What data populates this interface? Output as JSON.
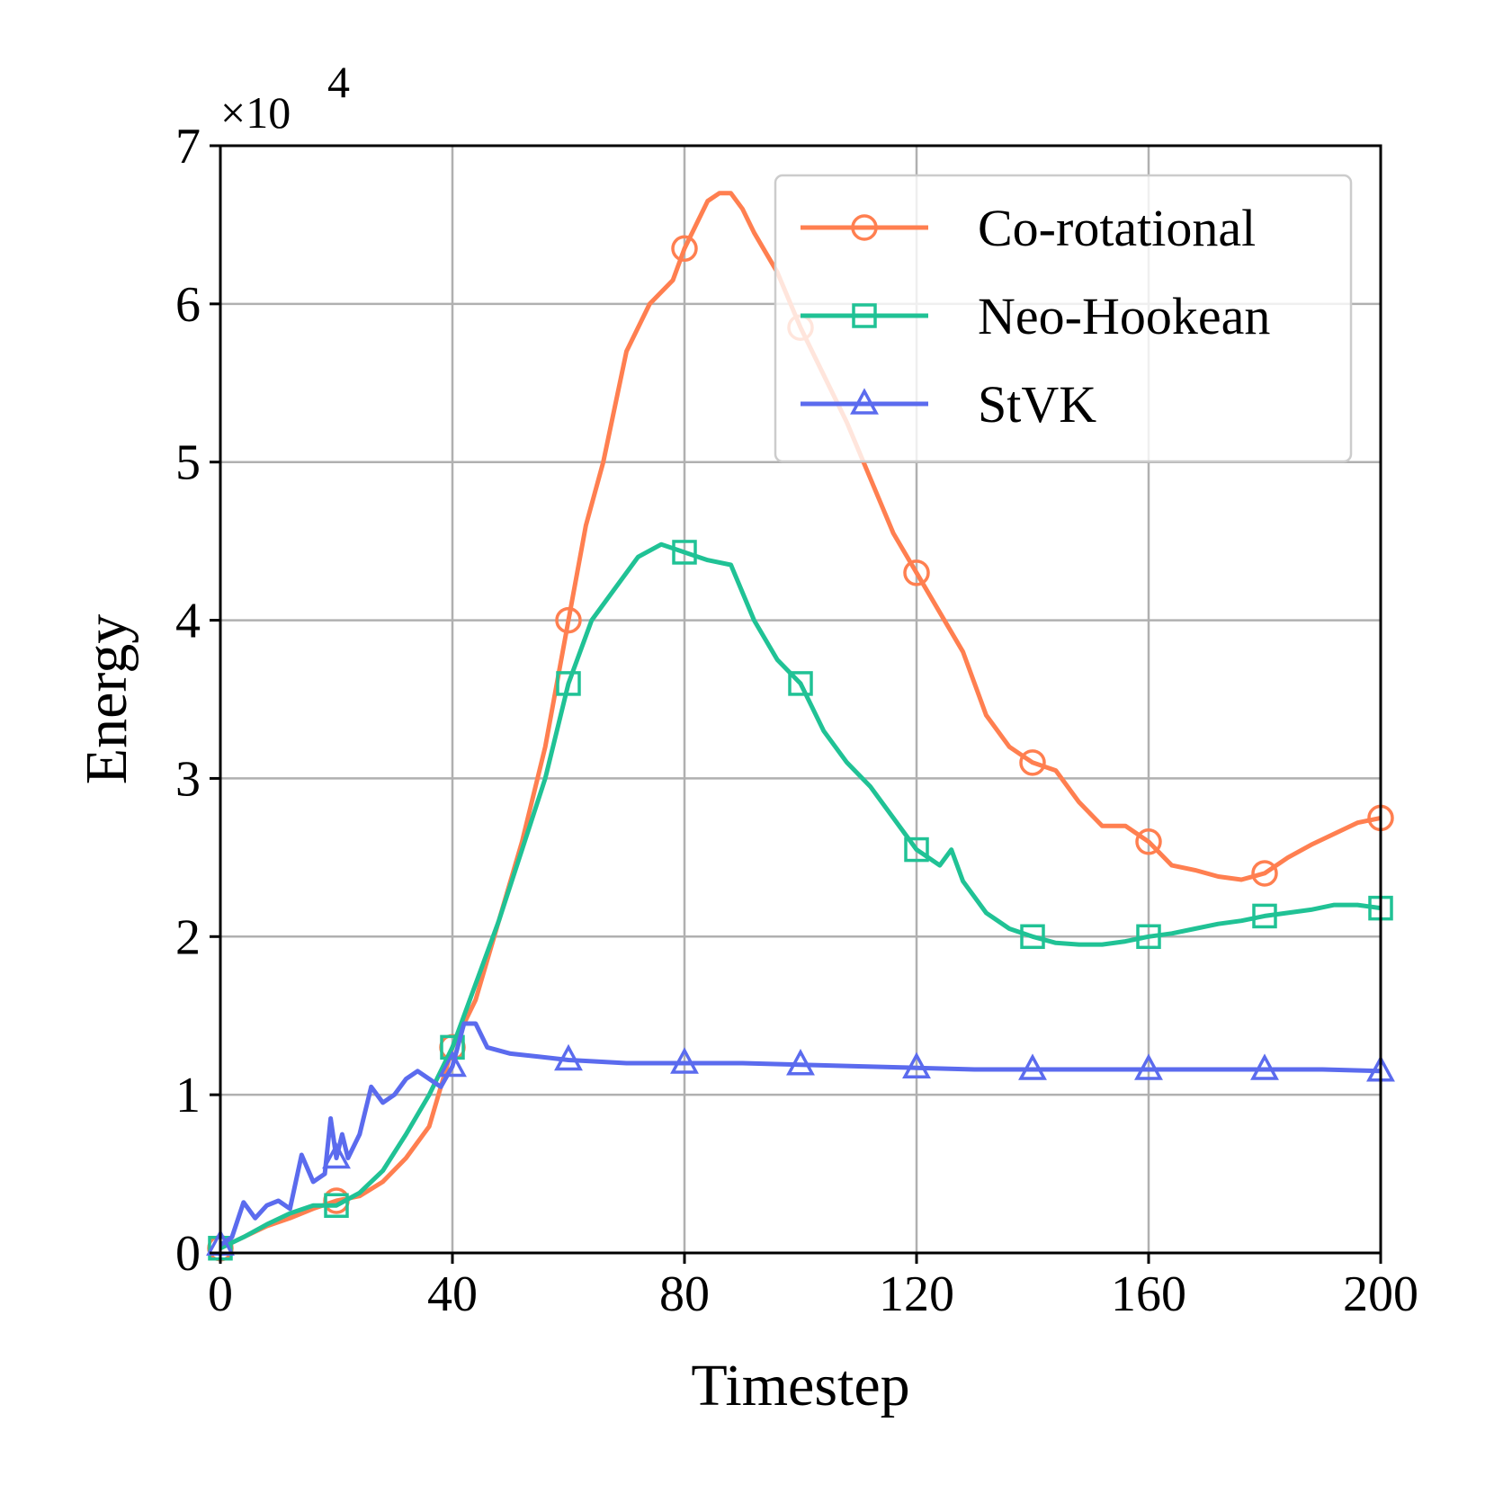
{
  "chart_data": {
    "type": "line",
    "xlabel": "Timestep",
    "ylabel": "Energy",
    "y_multiplier_base": "×10",
    "y_multiplier_exp": "4",
    "xlim": [
      0,
      200
    ],
    "ylim": [
      0,
      7
    ],
    "x_ticks": [
      0,
      40,
      80,
      120,
      160,
      200
    ],
    "y_ticks": [
      0,
      1,
      2,
      3,
      4,
      5,
      6,
      7
    ],
    "grid": true,
    "legend_position": "top-right",
    "marker_x": [
      0,
      20,
      40,
      60,
      80,
      100,
      120,
      140,
      160,
      180,
      200
    ],
    "series": [
      {
        "name": "Co-rotational",
        "color": "#FF7F50",
        "marker": "circle",
        "x": [
          0,
          4,
          8,
          12,
          16,
          20,
          24,
          28,
          32,
          36,
          40,
          44,
          48,
          52,
          56,
          60,
          63,
          66,
          70,
          74,
          78,
          80,
          82,
          84,
          86,
          88,
          90,
          92,
          96,
          100,
          104,
          108,
          112,
          116,
          120,
          124,
          128,
          132,
          136,
          140,
          144,
          148,
          152,
          156,
          160,
          164,
          168,
          172,
          176,
          180,
          184,
          188,
          192,
          196,
          200
        ],
        "y": [
          0.03,
          0.1,
          0.17,
          0.22,
          0.28,
          0.33,
          0.36,
          0.45,
          0.6,
          0.8,
          1.3,
          1.6,
          2.1,
          2.6,
          3.2,
          4.0,
          4.6,
          5.0,
          5.7,
          6.0,
          6.15,
          6.35,
          6.5,
          6.65,
          6.7,
          6.7,
          6.6,
          6.45,
          6.2,
          5.85,
          5.55,
          5.25,
          4.9,
          4.55,
          4.3,
          4.05,
          3.8,
          3.4,
          3.2,
          3.1,
          3.05,
          2.85,
          2.7,
          2.7,
          2.6,
          2.45,
          2.42,
          2.38,
          2.36,
          2.4,
          2.5,
          2.58,
          2.65,
          2.72,
          2.75
        ]
      },
      {
        "name": "Neo-Hookean",
        "color": "#20C295",
        "marker": "square",
        "x": [
          0,
          4,
          8,
          12,
          16,
          20,
          24,
          28,
          32,
          36,
          40,
          44,
          48,
          52,
          56,
          60,
          64,
          68,
          72,
          76,
          80,
          84,
          88,
          92,
          96,
          100,
          104,
          108,
          112,
          116,
          120,
          124,
          126,
          128,
          132,
          136,
          140,
          144,
          148,
          152,
          156,
          160,
          164,
          168,
          172,
          176,
          180,
          184,
          188,
          192,
          196,
          200
        ],
        "y": [
          0.03,
          0.1,
          0.18,
          0.25,
          0.3,
          0.3,
          0.38,
          0.52,
          0.75,
          1.0,
          1.3,
          1.7,
          2.1,
          2.55,
          3.0,
          3.6,
          4.0,
          4.2,
          4.4,
          4.48,
          4.43,
          4.38,
          4.35,
          4.0,
          3.75,
          3.6,
          3.3,
          3.1,
          2.95,
          2.75,
          2.55,
          2.45,
          2.55,
          2.35,
          2.15,
          2.05,
          2.0,
          1.96,
          1.95,
          1.95,
          1.97,
          2.0,
          2.02,
          2.05,
          2.08,
          2.1,
          2.13,
          2.15,
          2.17,
          2.2,
          2.2,
          2.18
        ]
      },
      {
        "name": "StVK",
        "color": "#5B6BEE",
        "marker": "triangle",
        "x": [
          0,
          2,
          4,
          6,
          8,
          10,
          12,
          14,
          16,
          18,
          19,
          20,
          21,
          22,
          24,
          26,
          28,
          30,
          32,
          34,
          36,
          38,
          40,
          42,
          44,
          46,
          50,
          55,
          60,
          70,
          80,
          90,
          100,
          110,
          120,
          130,
          140,
          150,
          160,
          170,
          180,
          190,
          200
        ],
        "y": [
          0.05,
          0.1,
          0.32,
          0.22,
          0.3,
          0.33,
          0.28,
          0.62,
          0.45,
          0.5,
          0.85,
          0.6,
          0.75,
          0.6,
          0.75,
          1.05,
          0.95,
          1.0,
          1.1,
          1.15,
          1.1,
          1.05,
          1.18,
          1.45,
          1.45,
          1.3,
          1.26,
          1.24,
          1.22,
          1.2,
          1.2,
          1.2,
          1.19,
          1.18,
          1.17,
          1.16,
          1.16,
          1.16,
          1.16,
          1.16,
          1.16,
          1.16,
          1.15
        ]
      }
    ]
  }
}
